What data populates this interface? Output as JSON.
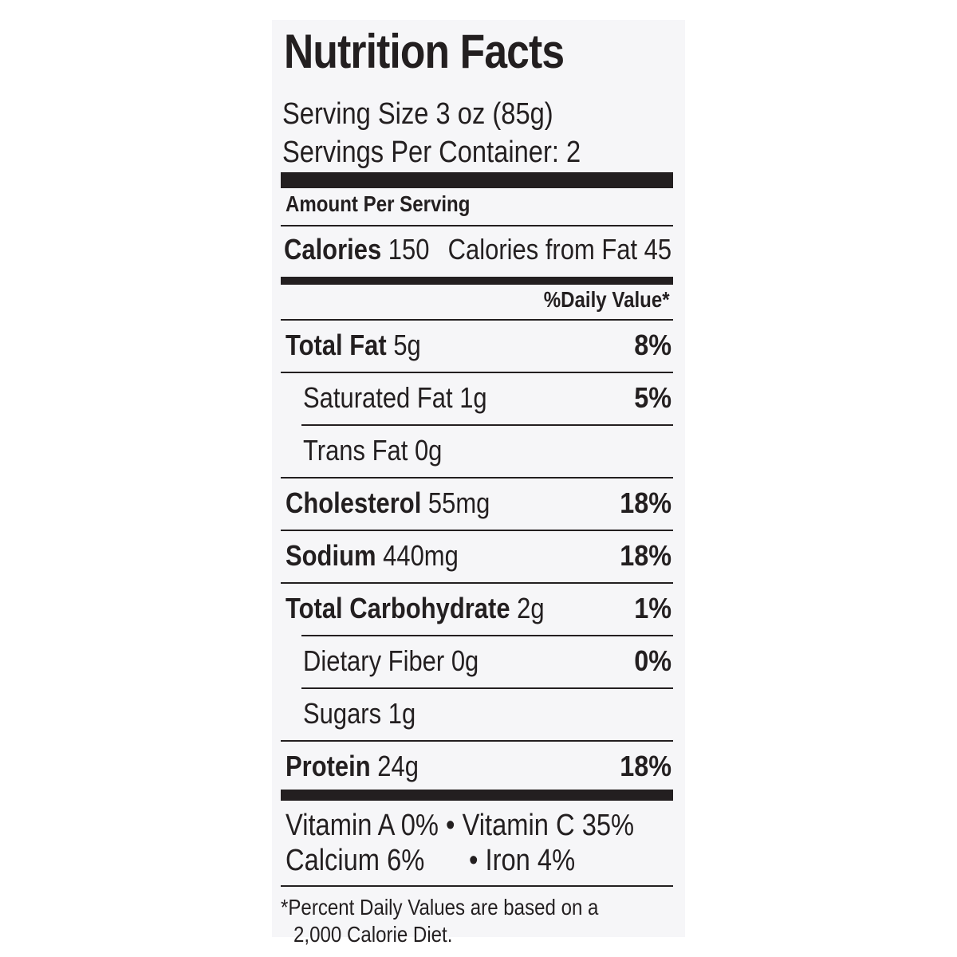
{
  "label": {
    "title": "Nutrition Facts",
    "serving_size": "Serving Size 3 oz (85g)",
    "servings_per_container": "Servings Per Container: 2",
    "amount_per_serving": "Amount Per Serving",
    "calories_label": "Calories",
    "calories_value": "150",
    "calories_from_fat": "Calories from Fat 45",
    "daily_value_header": "%Daily Value*",
    "nutrients": [
      {
        "name": "Total Fat",
        "amount": "5g",
        "dv": "8%"
      },
      {
        "name": "Saturated Fat",
        "amount": "1g",
        "dv": "5%"
      },
      {
        "name": "Trans Fat",
        "amount": "0g",
        "dv": ""
      },
      {
        "name": "Cholesterol",
        "amount": "55mg",
        "dv": "18%"
      },
      {
        "name": "Sodium",
        "amount": "440mg",
        "dv": "18%"
      },
      {
        "name": "Total Carbohydrate",
        "amount": "2g",
        "dv": "1%"
      },
      {
        "name": "Dietary Fiber",
        "amount": "0g",
        "dv": "0%"
      },
      {
        "name": "Sugars",
        "amount": "1g",
        "dv": ""
      },
      {
        "name": "Protein",
        "amount": "24g",
        "dv": "18%"
      }
    ],
    "vitamins_line1": "Vitamin A 0% • Vitamin C 35%",
    "vitamins_line2_left": "Calcium 6%",
    "vitamins_line2_right": "• Iron 4%",
    "footnote_line1": "*Percent Daily Values are based on a",
    "footnote_line2": "2,000 Calorie Diet."
  }
}
